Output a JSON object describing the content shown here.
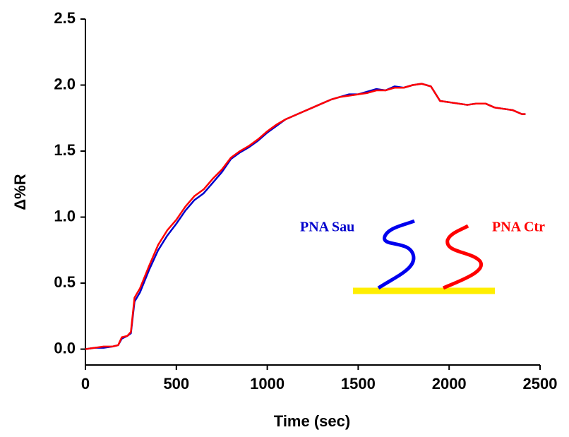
{
  "chart_data": {
    "type": "line",
    "x_label": "Time (sec)",
    "y_label": "Δ%R",
    "x": [
      0,
      50,
      100,
      150,
      180,
      200,
      230,
      250,
      270,
      300,
      350,
      400,
      450,
      500,
      550,
      600,
      650,
      700,
      750,
      800,
      850,
      900,
      950,
      1000,
      1050,
      1100,
      1150,
      1200,
      1250,
      1300,
      1350,
      1400,
      1450,
      1500,
      1550,
      1600,
      1650,
      1700,
      1750,
      1800,
      1850,
      1900,
      1950,
      2000,
      2050,
      2100,
      2150,
      2200,
      2250,
      2300,
      2350,
      2400,
      2420
    ],
    "series": [
      {
        "name": "PNA Sau",
        "color": "#0000cc",
        "values": [
          0.0,
          0.01,
          0.01,
          0.02,
          0.03,
          0.08,
          0.1,
          0.12,
          0.36,
          0.43,
          0.6,
          0.75,
          0.86,
          0.95,
          1.05,
          1.13,
          1.18,
          1.26,
          1.34,
          1.44,
          1.49,
          1.53,
          1.58,
          1.64,
          1.69,
          1.74,
          1.77,
          1.8,
          1.83,
          1.86,
          1.89,
          1.91,
          1.93,
          1.93,
          1.95,
          1.97,
          1.96,
          1.99,
          1.98,
          2.0,
          2.01,
          1.99,
          1.88,
          1.87,
          1.86,
          1.85,
          1.86,
          1.86,
          1.83,
          1.82,
          1.81,
          1.78,
          1.78
        ]
      },
      {
        "name": "PNA Ctr",
        "color": "#ff0000",
        "values": [
          0.0,
          0.01,
          0.02,
          0.02,
          0.03,
          0.09,
          0.1,
          0.13,
          0.39,
          0.46,
          0.63,
          0.79,
          0.9,
          0.98,
          1.08,
          1.16,
          1.21,
          1.29,
          1.36,
          1.45,
          1.5,
          1.54,
          1.59,
          1.65,
          1.7,
          1.74,
          1.77,
          1.8,
          1.83,
          1.86,
          1.89,
          1.91,
          1.92,
          1.93,
          1.94,
          1.96,
          1.96,
          1.98,
          1.98,
          2.0,
          2.01,
          1.99,
          1.88,
          1.87,
          1.86,
          1.85,
          1.86,
          1.86,
          1.83,
          1.82,
          1.81,
          1.78,
          1.78
        ]
      }
    ],
    "xlim": [
      0,
      2500
    ],
    "xticks": [
      0,
      500,
      1000,
      1500,
      2000,
      2500
    ],
    "ylim": [
      -0.12,
      2.5
    ],
    "yticks": [
      {
        "value": 0,
        "label": "0.0"
      },
      0.5,
      {
        "value": 1,
        "label": "1.0"
      },
      1.5,
      {
        "value": 2,
        "label": "2.0"
      },
      2.5
    ]
  }
}
